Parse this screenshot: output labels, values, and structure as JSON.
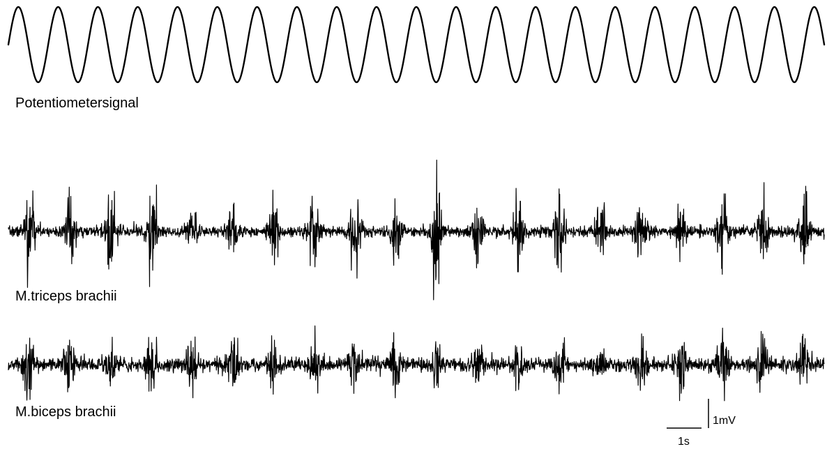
{
  "chart_data": {
    "type": "line",
    "colors": {
      "trace": "#000000",
      "background": "#ffffff"
    },
    "traces": [
      {
        "label": "Potentiometersignal",
        "kind": "sine",
        "cycles": 20.5,
        "phase": 1.571
      },
      {
        "label": "M.triceps brachii",
        "kind": "emg",
        "bursts": 20,
        "burst_peak_mV": [
          1.2,
          1.1,
          1.2,
          1.1,
          0.5,
          0.7,
          0.8,
          0.9,
          1.0,
          1.1,
          1.5,
          1.1,
          1.1,
          1.3,
          1.0,
          1.0,
          0.9,
          0.9,
          1.0,
          1.2
        ],
        "baseline_mV": 0.05,
        "seed": 7
      },
      {
        "label": "M.biceps brachii",
        "kind": "emg",
        "bursts": 20,
        "burst_peak_mV": [
          0.9,
          0.8,
          0.7,
          0.7,
          0.8,
          0.8,
          0.8,
          0.8,
          0.7,
          0.8,
          0.8,
          0.8,
          0.8,
          0.8,
          0.9,
          1.0,
          1.0,
          1.5,
          1.0,
          0.9
        ],
        "baseline_mV": 0.08,
        "seed": 13
      }
    ],
    "scale_bar": {
      "time_label": "1s",
      "amplitude_label": "1mV"
    }
  }
}
